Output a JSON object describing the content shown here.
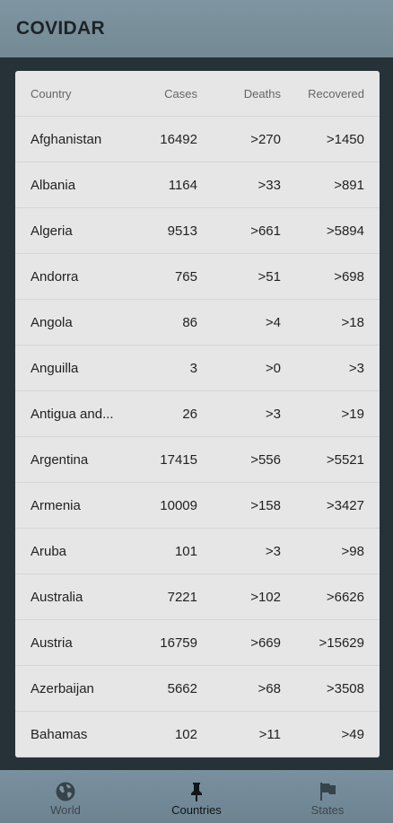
{
  "app": {
    "title": "COVIDAR"
  },
  "table": {
    "headers": {
      "country": "Country",
      "cases": "Cases",
      "deaths": "Deaths",
      "recovered": "Recovered"
    },
    "rows": [
      {
        "country": "Afghanistan",
        "cases": "16492",
        "deaths": ">270",
        "recovered": ">1450"
      },
      {
        "country": "Albania",
        "cases": "1164",
        "deaths": ">33",
        "recovered": ">891"
      },
      {
        "country": "Algeria",
        "cases": "9513",
        "deaths": ">661",
        "recovered": ">5894"
      },
      {
        "country": "Andorra",
        "cases": "765",
        "deaths": ">51",
        "recovered": ">698"
      },
      {
        "country": "Angola",
        "cases": "86",
        "deaths": ">4",
        "recovered": ">18"
      },
      {
        "country": "Anguilla",
        "cases": "3",
        "deaths": ">0",
        "recovered": ">3"
      },
      {
        "country": "Antigua and...",
        "cases": "26",
        "deaths": ">3",
        "recovered": ">19"
      },
      {
        "country": "Argentina",
        "cases": "17415",
        "deaths": ">556",
        "recovered": ">5521"
      },
      {
        "country": "Armenia",
        "cases": "10009",
        "deaths": ">158",
        "recovered": ">3427"
      },
      {
        "country": "Aruba",
        "cases": "101",
        "deaths": ">3",
        "recovered": ">98"
      },
      {
        "country": "Australia",
        "cases": "7221",
        "deaths": ">102",
        "recovered": ">6626"
      },
      {
        "country": "Austria",
        "cases": "16759",
        "deaths": ">669",
        "recovered": ">15629"
      },
      {
        "country": "Azerbaijan",
        "cases": "5662",
        "deaths": ">68",
        "recovered": ">3508"
      },
      {
        "country": "Bahamas",
        "cases": "102",
        "deaths": ">11",
        "recovered": ">49"
      }
    ]
  },
  "nav": {
    "items": [
      {
        "label": "World",
        "icon": "globe-icon",
        "active": false
      },
      {
        "label": "Countries",
        "icon": "pin-icon",
        "active": true
      },
      {
        "label": "States",
        "icon": "flag-icon",
        "active": false
      }
    ]
  }
}
